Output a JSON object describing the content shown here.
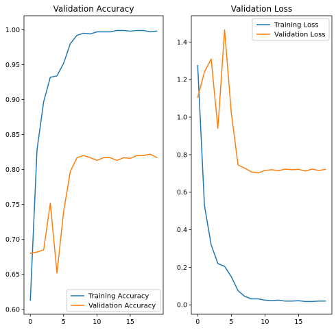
{
  "chart_data": [
    {
      "type": "line",
      "title": "Validation Accuracy",
      "xlabel": "",
      "ylabel": "",
      "xlim": [
        -0.95,
        19.95
      ],
      "ylim": [
        0.593,
        1.02
      ],
      "xticks": [
        0,
        5,
        10,
        15
      ],
      "yticks": [
        0.6,
        0.65,
        0.7,
        0.75,
        0.8,
        0.85,
        0.9,
        0.95,
        1.0
      ],
      "ytick_labels": [
        "0.60",
        "0.65",
        "0.70",
        "0.75",
        "0.80",
        "0.85",
        "0.90",
        "0.95",
        "1.00"
      ],
      "legend_placement": "lower-right",
      "grid": false,
      "x": [
        0,
        1,
        2,
        3,
        4,
        5,
        6,
        7,
        8,
        9,
        10,
        11,
        12,
        13,
        14,
        15,
        16,
        17,
        18,
        19
      ],
      "series": [
        {
          "name": "Training Accuracy",
          "color": "#1f77b4",
          "values": [
            0.613,
            0.828,
            0.897,
            0.932,
            0.934,
            0.952,
            0.98,
            0.992,
            0.995,
            0.994,
            0.997,
            0.997,
            0.997,
            0.999,
            0.999,
            0.998,
            0.999,
            0.999,
            0.997,
            0.998
          ]
        },
        {
          "name": "Validation Accuracy",
          "color": "#ff7f0e",
          "values": [
            0.68,
            0.682,
            0.685,
            0.752,
            0.652,
            0.74,
            0.797,
            0.817,
            0.82,
            0.817,
            0.813,
            0.817,
            0.817,
            0.813,
            0.817,
            0.816,
            0.82,
            0.82,
            0.822,
            0.817
          ]
        }
      ]
    },
    {
      "type": "line",
      "title": "Validation Loss",
      "xlabel": "",
      "ylabel": "",
      "xlim": [
        -0.95,
        19.95
      ],
      "ylim": [
        -0.05,
        1.54
      ],
      "xticks": [
        0,
        5,
        10,
        15
      ],
      "yticks": [
        0.0,
        0.2,
        0.4,
        0.6,
        0.8,
        1.0,
        1.2,
        1.4
      ],
      "ytick_labels": [
        "0.0",
        "0.2",
        "0.4",
        "0.6",
        "0.8",
        "1.0",
        "1.2",
        "1.4"
      ],
      "legend_placement": "upper-right",
      "grid": false,
      "x": [
        0,
        1,
        2,
        3,
        4,
        5,
        6,
        7,
        8,
        9,
        10,
        11,
        12,
        13,
        14,
        15,
        16,
        17,
        18,
        19
      ],
      "series": [
        {
          "name": "Training Loss",
          "color": "#1f77b4",
          "values": [
            1.275,
            0.53,
            0.32,
            0.22,
            0.205,
            0.15,
            0.075,
            0.045,
            0.032,
            0.032,
            0.025,
            0.022,
            0.025,
            0.02,
            0.02,
            0.022,
            0.018,
            0.018,
            0.02,
            0.02
          ]
        },
        {
          "name": "Validation Loss",
          "color": "#ff7f0e",
          "values": [
            1.105,
            1.24,
            1.31,
            0.94,
            1.465,
            1.02,
            0.745,
            0.728,
            0.708,
            0.703,
            0.716,
            0.72,
            0.715,
            0.723,
            0.72,
            0.722,
            0.713,
            0.723,
            0.716,
            0.722
          ]
        }
      ]
    }
  ]
}
